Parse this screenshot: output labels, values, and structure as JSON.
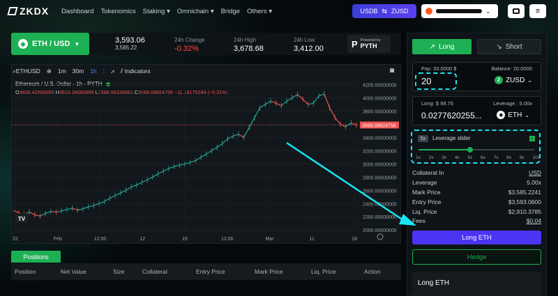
{
  "brand": {
    "name": "ZKDX"
  },
  "nav": [
    "Dashboard",
    "Tokenomics",
    "Staking ▾",
    "Omnichain ▾",
    "Bridge",
    "Others ▾"
  ],
  "header": {
    "swap_label_left": "USDB",
    "swap_label_right": "ZUSD",
    "swap_arrow": "⇆"
  },
  "pair": {
    "label": "ETH / USD",
    "price": "3,593.06",
    "price_sub": "3,585.22",
    "change_label": "24h Change",
    "change_value": "-0.32%",
    "high_label": "24h High",
    "high_value": "3,678.68",
    "low_label": "24h Low",
    "low_value": "3,412.00",
    "pyth_small": "Powered by",
    "pyth_name": "PYTH"
  },
  "chart_toolbar": {
    "symbol": "ETHUSD",
    "intervals": [
      "1m",
      "30m",
      "1h"
    ],
    "indicators": "Indicators"
  },
  "chart_legend": {
    "title": "Ethereum / U.S. Dollar · 1h · PYTH",
    "o_label": "O",
    "o_value": "3600.42500000",
    "h_label": "H",
    "h_value": "3610.34000999",
    "l_label": "L",
    "l_value": "3588.56335861",
    "c_label": "C",
    "c_value": "3589.09824756",
    "change": "−11.18175244 (−0.31%)"
  },
  "chart_data": {
    "type": "line",
    "title": "Ethereum / U.S. Dollar · 1h · PYTH",
    "xlabel": "",
    "ylabel": "",
    "x_ticks": [
      "22",
      "Feb",
      "12:00",
      "12",
      "19",
      "12:00",
      "Mar",
      "11",
      "18"
    ],
    "y_ticks": [
      2000,
      2200,
      2400,
      2600,
      2800,
      3000,
      3200,
      3400,
      3600,
      3800,
      4000,
      4200
    ],
    "y_tick_labels": [
      "2000.00000000",
      "2200.00000000",
      "2400.00000000",
      "2600.00000000",
      "2800.00000000",
      "3000.00000000",
      "3200.00000000",
      "3400.00000000",
      "3600.00000000",
      "3800.00000000",
      "4000.00000000",
      "4200.00000000"
    ],
    "ylim": [
      1960,
      4300
    ],
    "last_price_label": "3589.09824756",
    "last_price": 3589.1,
    "series": [
      {
        "values": [
          2300,
          2260,
          2240,
          2270,
          2230,
          2210,
          2250,
          2280,
          2270,
          2290,
          2310,
          2330,
          2300,
          2320,
          2350,
          2370,
          2400,
          2430,
          2480,
          2520,
          2560,
          2600,
          2650,
          2680,
          2720,
          2760,
          2800,
          2850,
          2890,
          2930,
          2960,
          2980,
          3000,
          3020,
          3050,
          3100,
          3150,
          3200,
          3250,
          3310,
          3380,
          3420,
          3450,
          3400,
          3550,
          3700,
          3850,
          3900,
          3950,
          3920,
          3880,
          3950,
          4000,
          4050,
          3980,
          3900,
          3920,
          4030,
          4060,
          3850,
          3700,
          3600,
          3560,
          3620,
          3590
        ]
      }
    ],
    "grid": true
  },
  "positions": {
    "tab": "Positions",
    "columns": [
      "Position",
      "Net Value",
      "Size",
      "Collateral",
      "Entry Price",
      "Mark Price",
      "Liq. Price",
      "Action"
    ]
  },
  "trade": {
    "long_tab": "Long",
    "short_tab": "Short",
    "pay_label": "Pay: 20.0000 $",
    "balance_label": "Balance: 20.0000",
    "pay_value": "20",
    "pay_token": "ZUSD",
    "long_label": "Long: $ 99.75",
    "leverage_label": "Leverage : 5.00x",
    "long_value": "0.0277620255...",
    "long_token": "ETH",
    "lev_badge": "5x",
    "lev_slider_label": "Leverage slider",
    "lev_ticks": [
      "1x",
      "2x",
      "3x",
      "4x",
      "5x",
      "6x",
      "7x",
      "8x",
      "9x",
      "10x"
    ],
    "lev_value": 5,
    "rows": [
      {
        "label": "Collateral In",
        "value": "USD"
      },
      {
        "label": "Leverage",
        "value": "5.00x"
      },
      {
        "label": "Mark Price",
        "value": "$3,585.2241"
      },
      {
        "label": "Entry Price",
        "value": "$3,593.0600"
      },
      {
        "label": "Liq. Price",
        "value": "$2,910.3785"
      },
      {
        "label": "Fees",
        "value": "$0.04"
      }
    ],
    "long_button": "Long ETH",
    "hedge_button": "Hedge",
    "summary_title": "Long ETH"
  }
}
